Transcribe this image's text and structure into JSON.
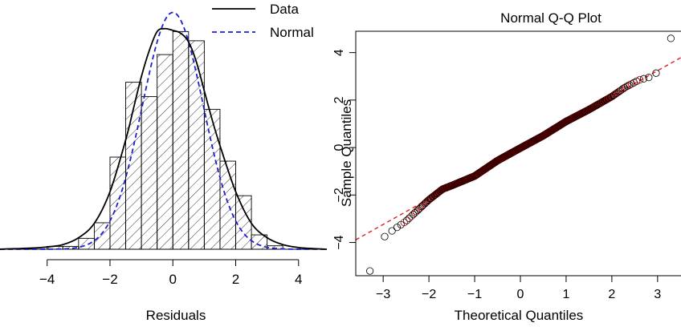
{
  "chart_data": [
    {
      "type": "histogram",
      "title": "",
      "xlabel": "Residuals",
      "ylabel": "",
      "xlim": [
        -5.5,
        4.9
      ],
      "ylim": [
        0,
        0.43
      ],
      "xticks": [
        -4,
        -2,
        0,
        2,
        4
      ],
      "xtick_labels": [
        "−4",
        "−2",
        "0",
        "2",
        "4"
      ],
      "bin_width": 0.5,
      "bins": [
        {
          "x0": -4.0,
          "x1": -3.5,
          "density": 0.005
        },
        {
          "x0": -3.5,
          "x1": -3.0,
          "density": 0.005
        },
        {
          "x0": -3.0,
          "x1": -2.5,
          "density": 0.019
        },
        {
          "x0": -2.5,
          "x1": -2.0,
          "density": 0.046
        },
        {
          "x0": -2.0,
          "x1": -1.5,
          "density": 0.16
        },
        {
          "x0": -1.5,
          "x1": -1.0,
          "density": 0.29
        },
        {
          "x0": -1.0,
          "x1": -0.5,
          "density": 0.265
        },
        {
          "x0": -0.5,
          "x1": 0.0,
          "density": 0.338
        },
        {
          "x0": 0.0,
          "x1": 0.5,
          "density": 0.378
        },
        {
          "x0": 0.5,
          "x1": 1.0,
          "density": 0.362
        },
        {
          "x0": 1.0,
          "x1": 1.5,
          "density": 0.243
        },
        {
          "x0": 1.5,
          "x1": 2.0,
          "density": 0.153
        },
        {
          "x0": 2.0,
          "x1": 2.5,
          "density": 0.093
        },
        {
          "x0": 2.5,
          "x1": 3.0,
          "density": 0.025
        },
        {
          "x0": 3.0,
          "x1": 3.5,
          "density": 0.006
        }
      ],
      "series": [
        {
          "name": "Data",
          "kind": "density",
          "color": "#000000",
          "linestyle": "solid",
          "x": [
            -5.6,
            -5.0,
            -4.5,
            -4.0,
            -3.5,
            -3.0,
            -2.5,
            -2.0,
            -1.5,
            -1.25,
            -1.0,
            -0.75,
            -0.5,
            -0.25,
            0.0,
            0.25,
            0.5,
            0.75,
            1.0,
            1.25,
            1.5,
            2.0,
            2.5,
            3.0,
            3.5,
            4.0,
            4.5,
            4.9
          ],
          "y": [
            0.0,
            0.001,
            0.002,
            0.004,
            0.008,
            0.02,
            0.045,
            0.1,
            0.19,
            0.245,
            0.3,
            0.345,
            0.378,
            0.383,
            0.38,
            0.375,
            0.36,
            0.325,
            0.275,
            0.225,
            0.18,
            0.1,
            0.045,
            0.02,
            0.008,
            0.003,
            0.001,
            0.0
          ]
        },
        {
          "name": "Normal",
          "kind": "normal",
          "color": "#1f1fd0",
          "linestyle": "dashed",
          "mean": 0.0,
          "sd": 0.97
        }
      ],
      "legend": {
        "position": "top-right",
        "entries": [
          {
            "label": "Data",
            "color": "#000000",
            "style": "solid"
          },
          {
            "label": "Normal",
            "color": "#1f1fd0",
            "style": "dashed"
          }
        ]
      }
    },
    {
      "type": "scatter",
      "title": "Normal Q-Q Plot",
      "xlabel": "Theoretical Quantiles",
      "ylabel": "Sample Quantiles",
      "xlim": [
        -3.6,
        3.6
      ],
      "ylim": [
        -5.4,
        4.9
      ],
      "xticks": [
        -3,
        -2,
        -1,
        0,
        1,
        2,
        3
      ],
      "xtick_labels": [
        "−3",
        "−2",
        "−1",
        "0",
        "1",
        "2",
        "3"
      ],
      "yticks": [
        -4,
        -2,
        0,
        2,
        4
      ],
      "ytick_labels": [
        "−4",
        "−2",
        "0",
        "2",
        "4"
      ],
      "reference_line": {
        "intercept": 0.0,
        "slope": 1.08,
        "color": "#e02020",
        "linestyle": "dashed"
      },
      "points": {
        "n": 1000,
        "color": "#000000",
        "highlight_color": "#c00000",
        "x_extremes": [
          -3.29,
          3.29
        ],
        "y_curve_x": [
          -3.29,
          -3.0,
          -2.8,
          -2.5,
          -2.0,
          -1.7,
          -1.5,
          -1.0,
          -0.5,
          0.0,
          0.5,
          1.0,
          1.5,
          2.0,
          2.3,
          2.6,
          2.9,
          3.05,
          3.29
        ],
        "y_curve_y": [
          -5.2,
          -3.8,
          -3.5,
          -3.1,
          -2.2,
          -1.75,
          -1.6,
          -1.2,
          -0.55,
          -0.02,
          0.5,
          1.1,
          1.6,
          2.15,
          2.55,
          2.85,
          3.0,
          3.3,
          4.6
        ]
      }
    }
  ]
}
